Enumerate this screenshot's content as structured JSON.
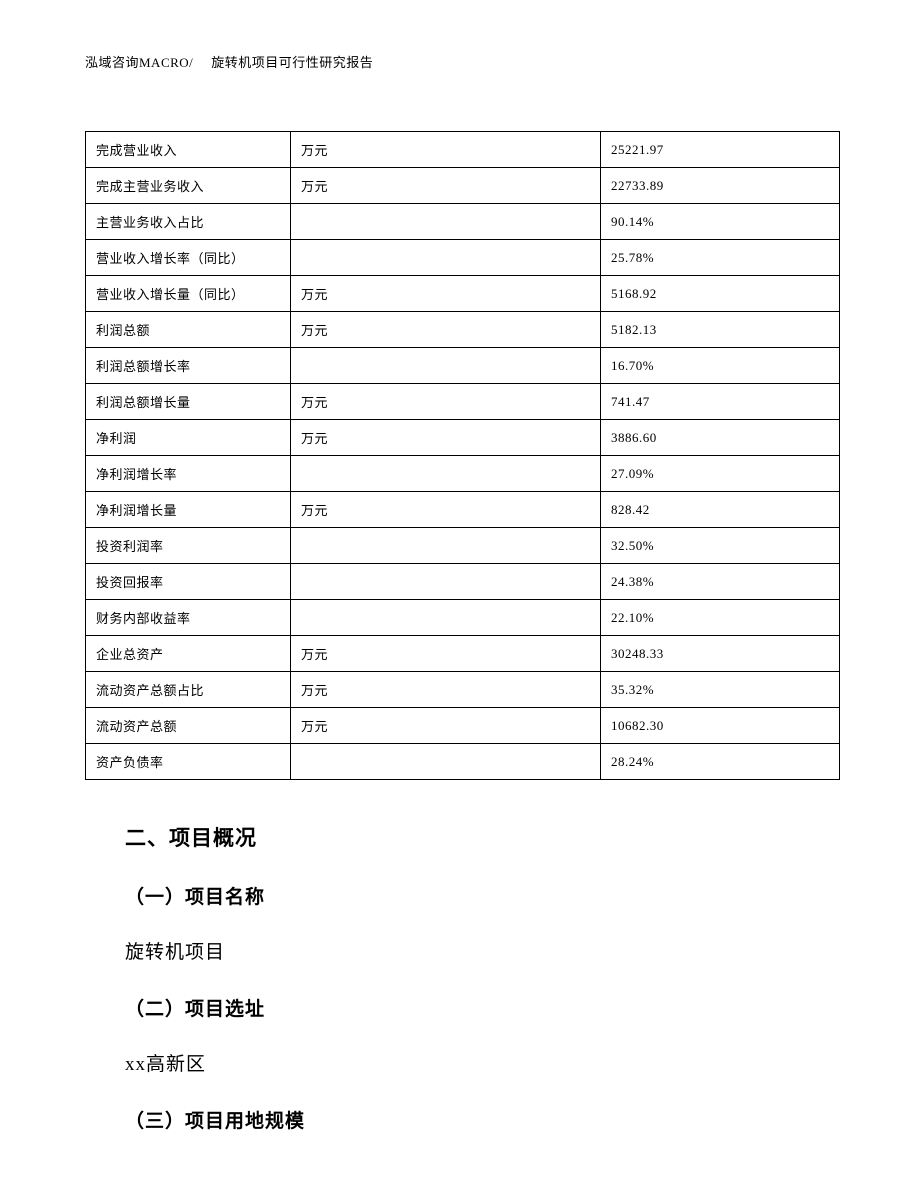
{
  "header": {
    "org": "泓域咨询MACRO/",
    "title": "旋转机项目可行性研究报告"
  },
  "table": {
    "col_widths": [
      "205px",
      "310px",
      "auto"
    ],
    "border_color": "#000000",
    "font_size_pt": 10,
    "rows": [
      {
        "label": "完成营业收入",
        "unit": "万元",
        "value": "25221.97"
      },
      {
        "label": "完成主营业务收入",
        "unit": "万元",
        "value": "22733.89"
      },
      {
        "label": "主营业务收入占比",
        "unit": "",
        "value": "90.14%"
      },
      {
        "label": "营业收入增长率（同比）",
        "unit": "",
        "value": "25.78%"
      },
      {
        "label": "营业收入增长量（同比）",
        "unit": "万元",
        "value": "5168.92"
      },
      {
        "label": "利润总额",
        "unit": "万元",
        "value": "5182.13"
      },
      {
        "label": "利润总额增长率",
        "unit": "",
        "value": "16.70%"
      },
      {
        "label": "利润总额增长量",
        "unit": "万元",
        "value": "741.47"
      },
      {
        "label": "净利润",
        "unit": "万元",
        "value": "3886.60"
      },
      {
        "label": "净利润增长率",
        "unit": "",
        "value": "27.09%"
      },
      {
        "label": "净利润增长量",
        "unit": "万元",
        "value": "828.42"
      },
      {
        "label": "投资利润率",
        "unit": "",
        "value": "32.50%"
      },
      {
        "label": "投资回报率",
        "unit": "",
        "value": "24.38%"
      },
      {
        "label": "财务内部收益率",
        "unit": "",
        "value": "22.10%"
      },
      {
        "label": "企业总资产",
        "unit": "万元",
        "value": "30248.33"
      },
      {
        "label": "流动资产总额占比",
        "unit": "万元",
        "value": "35.32%"
      },
      {
        "label": "流动资产总额",
        "unit": "万元",
        "value": "10682.30"
      },
      {
        "label": "资产负债率",
        "unit": "",
        "value": "28.24%"
      }
    ]
  },
  "sections": {
    "s2_heading": "二、项目概况",
    "s2_1_heading": "（一）项目名称",
    "s2_1_text": "旋转机项目",
    "s2_2_heading": "（二）项目选址",
    "s2_2_text": "xx高新区",
    "s2_3_heading": "（三）项目用地规模"
  },
  "style": {
    "background_color": "#ffffff",
    "text_color": "#000000",
    "heading_font": "SimHei",
    "body_font": "SimSun",
    "h2_fontsize_pt": 16,
    "h3_fontsize_pt": 14,
    "para_fontsize_pt": 14
  }
}
